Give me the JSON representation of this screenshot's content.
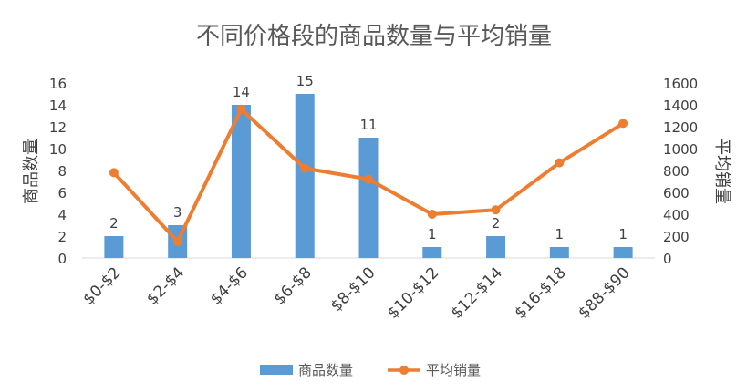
{
  "chart_data": {
    "type": "bar",
    "title": "不同价格段的商品数量与平均销量",
    "categories": [
      "$0-$2",
      "$2-$4",
      "$4-$6",
      "$6-$8",
      "$8-$10",
      "$10-$12",
      "$12-$14",
      "$16-$18",
      "$88-$90"
    ],
    "series": [
      {
        "name": "商品数量",
        "type": "bar",
        "axis": "left",
        "color": "#5B9BD5",
        "values": [
          2,
          3,
          14,
          15,
          11,
          1,
          2,
          1,
          1
        ],
        "data_labels": [
          "2",
          "3",
          "14",
          "15",
          "11",
          "1",
          "2",
          "1",
          "1"
        ]
      },
      {
        "name": "平均销量",
        "type": "line",
        "axis": "right",
        "color": "#ED7D31",
        "values": [
          780,
          150,
          1360,
          820,
          720,
          400,
          440,
          870,
          1230
        ]
      }
    ],
    "ylabel": "商品数量",
    "y2label": "平均销量",
    "ylim": [
      0,
      16
    ],
    "y2lim": [
      0,
      1600
    ],
    "yticks": [
      "0",
      "2",
      "4",
      "6",
      "8",
      "10",
      "12",
      "14",
      "16"
    ],
    "y2ticks": [
      "0",
      "200",
      "400",
      "600",
      "800",
      "1000",
      "1200",
      "1400",
      "1600"
    ],
    "grid": false,
    "legend_position": "bottom"
  }
}
